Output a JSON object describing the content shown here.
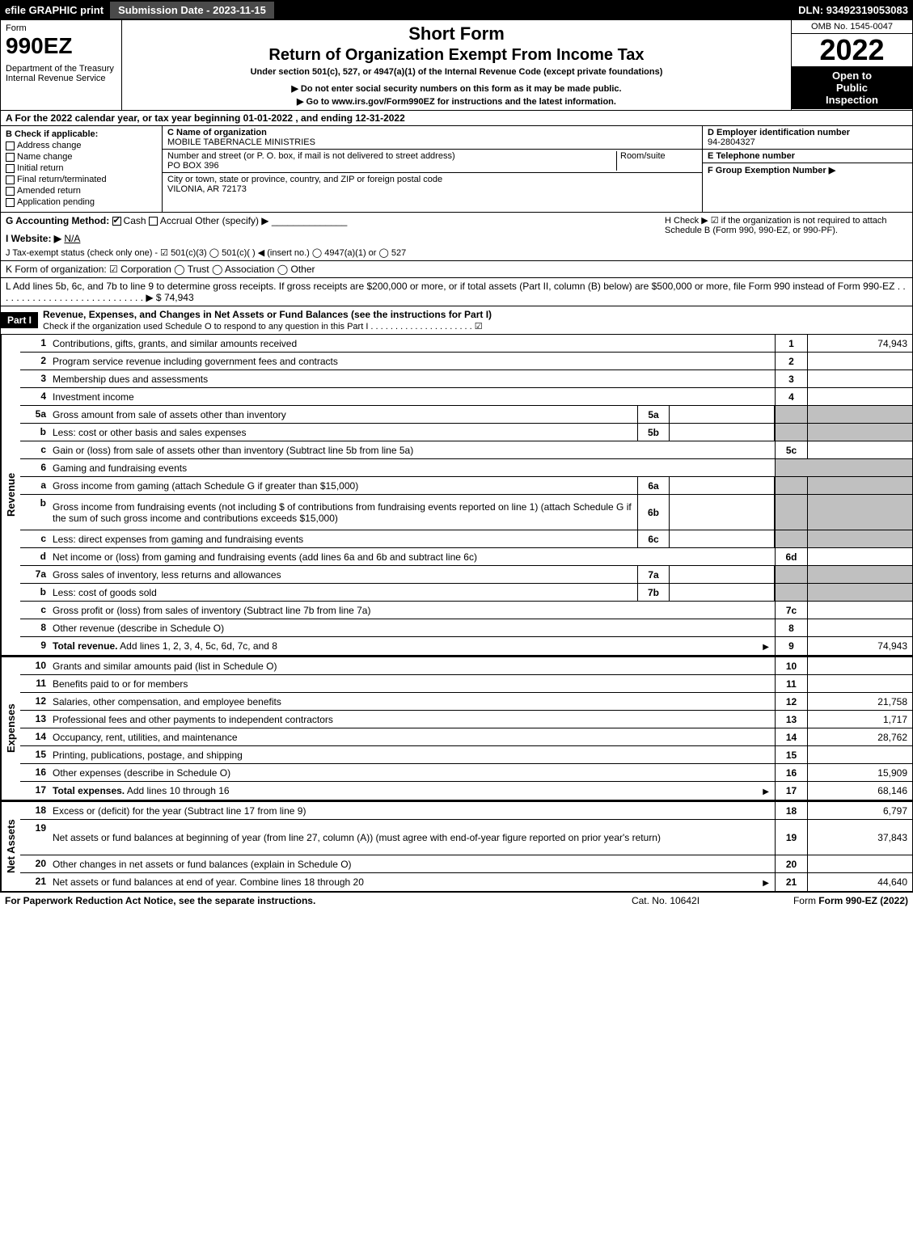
{
  "top": {
    "efile": "efile GRAPHIC print",
    "sub_date_label": "Submission Date - 2023-11-15",
    "dln": "DLN: 93492319053083"
  },
  "header": {
    "form_word": "Form",
    "form_num": "990EZ",
    "dept": "Department of the Treasury",
    "irs": "Internal Revenue Service",
    "title1": "Short Form",
    "title2": "Return of Organization Exempt From Income Tax",
    "under": "Under section 501(c), 527, or 4947(a)(1) of the Internal Revenue Code (except private foundations)",
    "note1": "▶ Do not enter social security numbers on this form as it may be made public.",
    "note2": "▶ Go to www.irs.gov/Form990EZ for instructions and the latest information.",
    "omb": "OMB No. 1545-0047",
    "year": "2022",
    "inspect1": "Open to",
    "inspect2": "Public",
    "inspect3": "Inspection"
  },
  "section_a": "A  For the 2022 calendar year, or tax year beginning 01-01-2022  , and ending 12-31-2022",
  "section_b": {
    "header": "B  Check if applicable:",
    "items": [
      "Address change",
      "Name change",
      "Initial return",
      "Final return/terminated",
      "Amended return",
      "Application pending"
    ]
  },
  "section_c": {
    "name_label": "C Name of organization",
    "name": "MOBILE TABERNACLE MINISTRIES",
    "addr_label": "Number and street (or P. O. box, if mail is not delivered to street address)",
    "room_label": "Room/suite",
    "addr": "PO BOX 396",
    "city_label": "City or town, state or province, country, and ZIP or foreign postal code",
    "city": "VILONIA, AR  72173"
  },
  "section_d": {
    "ein_label": "D Employer identification number",
    "ein": "94-2804327",
    "tel_label": "E Telephone number",
    "grp_label": "F Group Exemption Number  ▶"
  },
  "section_g": {
    "label": "G Accounting Method:",
    "cash": "Cash",
    "accrual": "Accrual",
    "other": "Other (specify) ▶"
  },
  "section_h": "H  Check ▶ ☑ if the organization is not required to attach Schedule B (Form 990, 990-EZ, or 990-PF).",
  "section_i": {
    "label": "I Website: ▶",
    "val": "N/A"
  },
  "section_j": "J Tax-exempt status (check only one) - ☑ 501(c)(3)  ◯ 501(c)(  ) ◀ (insert no.)  ◯ 4947(a)(1) or  ◯ 527",
  "section_k": "K Form of organization:  ☑ Corporation   ◯ Trust   ◯ Association   ◯ Other",
  "section_l": {
    "text": "L Add lines 5b, 6c, and 7b to line 9 to determine gross receipts. If gross receipts are $200,000 or more, or if total assets (Part II, column (B) below) are $500,000 or more, file Form 990 instead of Form 990-EZ  . . . . . . . . . . . . . . . . . . . . . . . . . . . . ▶ $",
    "amount": "74,943"
  },
  "part1": {
    "label": "Part I",
    "title": "Revenue, Expenses, and Changes in Net Assets or Fund Balances (see the instructions for Part I)",
    "check": "Check if the organization used Schedule O to respond to any question in this Part I . . . . . . . . . . . . . . . . . . . . . ☑"
  },
  "sections": {
    "revenue": "Revenue",
    "expenses": "Expenses",
    "netassets": "Net Assets"
  },
  "lines": [
    {
      "n": "1",
      "t": "Contributions, gifts, grants, and similar amounts received",
      "rn": "1",
      "rv": "74,943"
    },
    {
      "n": "2",
      "t": "Program service revenue including government fees and contracts",
      "rn": "2",
      "rv": ""
    },
    {
      "n": "3",
      "t": "Membership dues and assessments",
      "rn": "3",
      "rv": ""
    },
    {
      "n": "4",
      "t": "Investment income",
      "rn": "4",
      "rv": ""
    },
    {
      "n": "5a",
      "t": "Gross amount from sale of assets other than inventory",
      "mn": "5a",
      "mv": "",
      "shaded": true
    },
    {
      "n": "b",
      "t": "Less: cost or other basis and sales expenses",
      "mn": "5b",
      "mv": "",
      "shaded": true
    },
    {
      "n": "c",
      "t": "Gain or (loss) from sale of assets other than inventory (Subtract line 5b from line 5a)",
      "rn": "5c",
      "rv": ""
    },
    {
      "n": "6",
      "t": "Gaming and fundraising events",
      "shaded": true,
      "noright": true
    },
    {
      "n": "a",
      "t": "Gross income from gaming (attach Schedule G if greater than $15,000)",
      "mn": "6a",
      "mv": "",
      "shaded": true
    },
    {
      "n": "b",
      "t": "Gross income from fundraising events (not including $                         of contributions from fundraising events reported on line 1) (attach Schedule G if the sum of such gross income and contributions exceeds $15,000)",
      "mn": "6b",
      "mv": "",
      "shaded": true,
      "tall": true
    },
    {
      "n": "c",
      "t": "Less: direct expenses from gaming and fundraising events",
      "mn": "6c",
      "mv": "",
      "shaded": true
    },
    {
      "n": "d",
      "t": "Net income or (loss) from gaming and fundraising events (add lines 6a and 6b and subtract line 6c)",
      "rn": "6d",
      "rv": ""
    },
    {
      "n": "7a",
      "t": "Gross sales of inventory, less returns and allowances",
      "mn": "7a",
      "mv": "",
      "shaded": true
    },
    {
      "n": "b",
      "t": "Less: cost of goods sold",
      "mn": "7b",
      "mv": "",
      "shaded": true
    },
    {
      "n": "c",
      "t": "Gross profit or (loss) from sales of inventory (Subtract line 7b from line 7a)",
      "rn": "7c",
      "rv": ""
    },
    {
      "n": "8",
      "t": "Other revenue (describe in Schedule O)",
      "rn": "8",
      "rv": ""
    },
    {
      "n": "9",
      "t": "Total revenue. Add lines 1, 2, 3, 4, 5c, 6d, 7c, and 8",
      "rn": "9",
      "rv": "74,943",
      "bold": true,
      "arrow": true
    }
  ],
  "exp_lines": [
    {
      "n": "10",
      "t": "Grants and similar amounts paid (list in Schedule O)",
      "rn": "10",
      "rv": ""
    },
    {
      "n": "11",
      "t": "Benefits paid to or for members",
      "rn": "11",
      "rv": ""
    },
    {
      "n": "12",
      "t": "Salaries, other compensation, and employee benefits",
      "rn": "12",
      "rv": "21,758"
    },
    {
      "n": "13",
      "t": "Professional fees and other payments to independent contractors",
      "rn": "13",
      "rv": "1,717"
    },
    {
      "n": "14",
      "t": "Occupancy, rent, utilities, and maintenance",
      "rn": "14",
      "rv": "28,762"
    },
    {
      "n": "15",
      "t": "Printing, publications, postage, and shipping",
      "rn": "15",
      "rv": ""
    },
    {
      "n": "16",
      "t": "Other expenses (describe in Schedule O)",
      "rn": "16",
      "rv": "15,909"
    },
    {
      "n": "17",
      "t": "Total expenses. Add lines 10 through 16",
      "rn": "17",
      "rv": "68,146",
      "bold": true,
      "arrow": true
    }
  ],
  "na_lines": [
    {
      "n": "18",
      "t": "Excess or (deficit) for the year (Subtract line 17 from line 9)",
      "rn": "18",
      "rv": "6,797"
    },
    {
      "n": "19",
      "t": "Net assets or fund balances at beginning of year (from line 27, column (A)) (must agree with end-of-year figure reported on prior year's return)",
      "rn": "19",
      "rv": "37,843",
      "tall": true
    },
    {
      "n": "20",
      "t": "Other changes in net assets or fund balances (explain in Schedule O)",
      "rn": "20",
      "rv": ""
    },
    {
      "n": "21",
      "t": "Net assets or fund balances at end of year. Combine lines 18 through 20",
      "rn": "21",
      "rv": "44,640",
      "arrow": true
    }
  ],
  "footer": {
    "left": "For Paperwork Reduction Act Notice, see the separate instructions.",
    "mid": "Cat. No. 10642I",
    "right": "Form 990-EZ (2022)"
  }
}
